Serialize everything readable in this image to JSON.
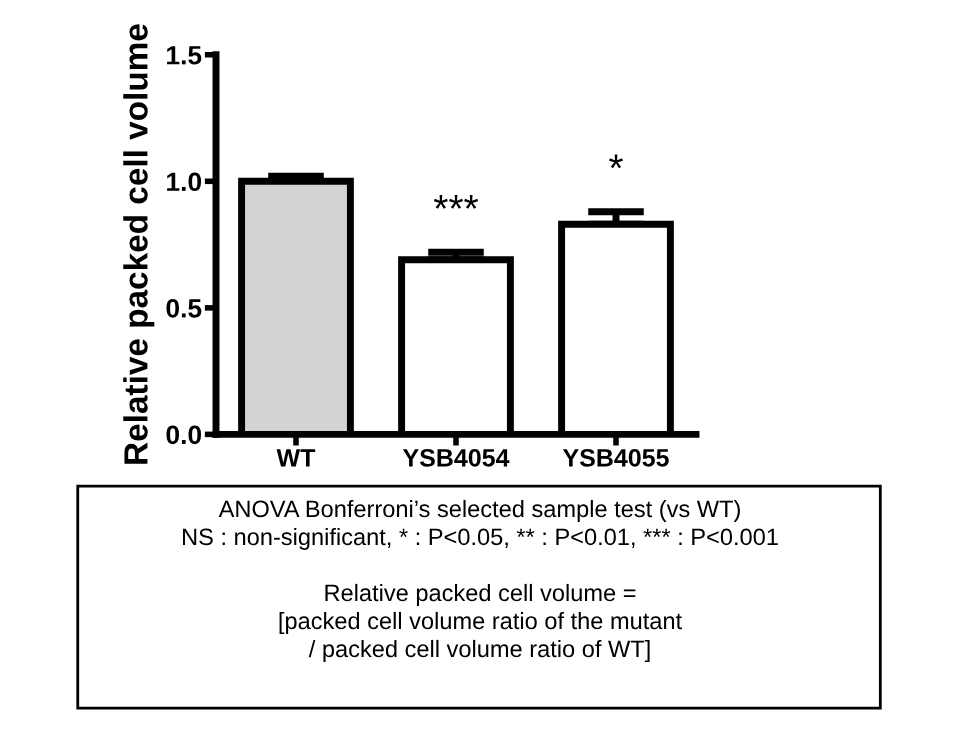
{
  "chart_data": {
    "type": "bar",
    "ylabel": "Relative packed cell volume",
    "categories": [
      "WT",
      "YSB4054",
      "YSB4055"
    ],
    "values": [
      1.0,
      0.69,
      0.83
    ],
    "errors": [
      0.02,
      0.03,
      0.05
    ],
    "colors": [
      "#d3d3d3",
      "#ffffff",
      "#ffffff"
    ],
    "ylim": [
      0,
      1.5
    ],
    "yticks": [
      {
        "value": 0,
        "label": "0.0"
      },
      {
        "value": 0.5,
        "label": "0.5"
      },
      {
        "value": 1.0,
        "label": "1.0"
      },
      {
        "value": 1.5,
        "label": "1.5"
      }
    ],
    "grid": false,
    "legend": false,
    "annotations": [
      {
        "text": "***",
        "x": "YSB4054",
        "y": 0.72
      },
      {
        "text": "*",
        "x": "YSB4055",
        "y": 0.88
      },
      "ANOVA Bonferroni’s selected sample test (vs WT)\nNS : non-significant, * : P<0.05, ** : P<0.01, *** : P<0.001\n\nRelative packed cell volume =\n[packed cell volume ratio of the mutant\n/ packed cell volume ratio of WT]"
    ]
  }
}
